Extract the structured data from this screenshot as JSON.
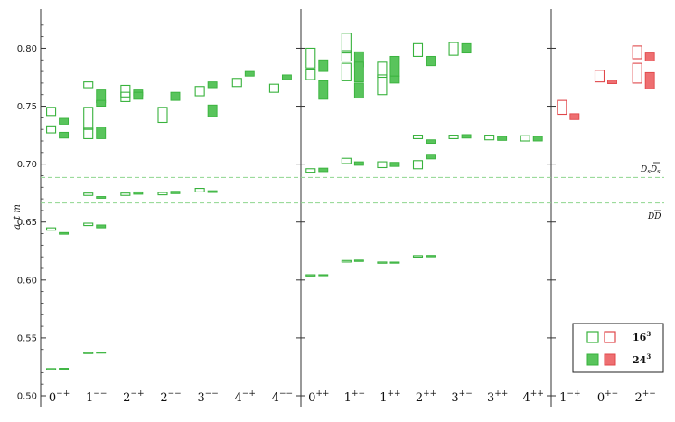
{
  "chart_data": {
    "type": "box",
    "ylabel": "a_t m",
    "ylim": [
      0.5,
      0.83
    ],
    "yticks": [
      "0.50",
      "0.55",
      "0.60",
      "0.65",
      "0.70",
      "0.75",
      "0.80"
    ],
    "colors": {
      "green_stroke": "#38b23c",
      "green_fill": "#59c45c",
      "red_stroke": "#e0474a",
      "red_fill": "#ee6f71",
      "threshold": "#8fd68f"
    },
    "thresholds": [
      {
        "name": "D_s D̄_s",
        "value": 0.6885
      },
      {
        "name": "DD̄",
        "value": 0.6665
      }
    ],
    "threshold_labels": {
      "dsds_base": "D",
      "dsds_sub": "s",
      "dsds_bar": "D",
      "dsds_bar_sub": "s",
      "dd_base": "D",
      "dd_bar": "D"
    },
    "legend": {
      "rows": [
        {
          "size": "16",
          "exp": "3",
          "style": "open"
        },
        {
          "size": "24",
          "exp": "3",
          "style": "filled"
        }
      ]
    },
    "panels": [
      {
        "color": "green",
        "categories": [
          {
            "label": "0",
            "sup": "−+",
            "open": [
              [
                0.742,
                0.749
              ],
              [
                0.727,
                0.733
              ],
              [
                0.643,
                0.645
              ],
              [
                0.5225,
                0.5235
              ]
            ],
            "filled": [
              [
                0.7345,
                0.7395
              ],
              [
                0.7225,
                0.7275
              ],
              [
                0.6395,
                0.641
              ],
              [
                0.5228,
                0.5238
              ]
            ]
          },
          {
            "label": "1",
            "sup": "−−",
            "open": [
              [
                0.766,
                0.771
              ],
              [
                0.73,
                0.749
              ],
              [
                0.722,
                0.731
              ],
              [
                0.673,
                0.675
              ],
              [
                0.647,
                0.649
              ],
              [
                0.5365,
                0.5375
              ]
            ],
            "filled": [
              [
                0.753,
                0.764
              ],
              [
                0.75,
                0.755
              ],
              [
                0.722,
                0.732
              ],
              [
                0.6705,
                0.672
              ],
              [
                0.645,
                0.6475
              ],
              [
                0.5368,
                0.5378
              ]
            ]
          },
          {
            "label": "2",
            "sup": "−+",
            "open": [
              [
                0.758,
                0.768
              ],
              [
                0.754,
                0.762
              ],
              [
                0.673,
                0.675
              ]
            ],
            "filled": [
              [
                0.759,
                0.764
              ],
              [
                0.756,
                0.762
              ],
              [
                0.674,
                0.676
              ]
            ]
          },
          {
            "label": "2",
            "sup": "−−",
            "open": [
              [
                0.736,
                0.749
              ],
              [
                0.6735,
                0.6755
              ]
            ],
            "filled": [
              [
                0.755,
                0.762
              ],
              [
                0.6745,
                0.6765
              ]
            ]
          },
          {
            "label": "3",
            "sup": "−−",
            "open": [
              [
                0.759,
                0.767
              ],
              [
                0.676,
                0.679
              ]
            ],
            "filled": [
              [
                0.766,
                0.771
              ],
              [
                0.741,
                0.751
              ],
              [
                0.6755,
                0.677
              ]
            ]
          },
          {
            "label": "4",
            "sup": "−+",
            "open": [
              [
                0.767,
                0.774
              ]
            ],
            "filled": [
              [
                0.776,
                0.78
              ]
            ]
          },
          {
            "label": "4",
            "sup": "−−",
            "open": [
              [
                0.762,
                0.769
              ]
            ],
            "filled": [
              [
                0.773,
                0.777
              ]
            ]
          }
        ]
      },
      {
        "color": "green",
        "categories": [
          {
            "label": "0",
            "sup": "++",
            "open": [
              [
                0.783,
                0.8
              ],
              [
                0.773,
                0.782
              ],
              [
                0.693,
                0.696
              ],
              [
                0.6035,
                0.6045
              ]
            ],
            "filled": [
              [
                0.78,
                0.79
              ],
              [
                0.756,
                0.772
              ],
              [
                0.6935,
                0.6965
              ],
              [
                0.6038,
                0.6046
              ]
            ]
          },
          {
            "label": "1",
            "sup": "+−",
            "open": [
              [
                0.796,
                0.813
              ],
              [
                0.789,
                0.798
              ],
              [
                0.772,
                0.787
              ],
              [
                0.7005,
                0.705
              ],
              [
                0.6155,
                0.6168
              ]
            ],
            "filled": [
              [
                0.784,
                0.797
              ],
              [
                0.771,
                0.788
              ],
              [
                0.757,
                0.77
              ],
              [
                0.699,
                0.702
              ],
              [
                0.616,
                0.6172
              ]
            ]
          },
          {
            "label": "1",
            "sup": "++",
            "open": [
              [
                0.775,
                0.788
              ],
              [
                0.76,
                0.777
              ],
              [
                0.697,
                0.702
              ],
              [
                0.6145,
                0.6155
              ]
            ],
            "filled": [
              [
                0.776,
                0.793
              ],
              [
                0.77,
                0.776
              ],
              [
                0.698,
                0.7015
              ],
              [
                0.6145,
                0.6155
              ]
            ]
          },
          {
            "label": "2",
            "sup": "++",
            "open": [
              [
                0.793,
                0.804
              ],
              [
                0.722,
                0.725
              ],
              [
                0.696,
                0.703
              ],
              [
                0.6198,
                0.621
              ]
            ],
            "filled": [
              [
                0.785,
                0.793
              ],
              [
                0.718,
                0.721
              ],
              [
                0.7045,
                0.7085
              ],
              [
                0.62,
                0.6212
              ]
            ]
          },
          {
            "label": "3",
            "sup": "+−",
            "open": [
              [
                0.794,
                0.805
              ],
              [
                0.722,
                0.725
              ]
            ],
            "filled": [
              [
                0.796,
                0.804
              ],
              [
                0.7225,
                0.7255
              ]
            ]
          },
          {
            "label": "3",
            "sup": "++",
            "open": [
              [
                0.721,
                0.725
              ]
            ],
            "filled": [
              [
                0.7205,
                0.724
              ]
            ]
          },
          {
            "label": "4",
            "sup": "++",
            "open": [
              [
                0.72,
                0.7245
              ]
            ],
            "filled": [
              [
                0.72,
                0.724
              ]
            ]
          }
        ]
      },
      {
        "color": "red",
        "categories": [
          {
            "label": "1",
            "sup": "−+",
            "open": [
              [
                0.743,
                0.755
              ]
            ],
            "filled": [
              [
                0.7385,
                0.7435
              ]
            ]
          },
          {
            "label": "0",
            "sup": "+−",
            "open": [
              [
                0.771,
                0.781
              ]
            ],
            "filled": [
              [
                0.7695,
                0.7725
              ]
            ]
          },
          {
            "label": "2",
            "sup": "+−",
            "open": [
              [
                0.791,
                0.802
              ],
              [
                0.77,
                0.787
              ]
            ],
            "filled": [
              [
                0.789,
                0.796
              ],
              [
                0.765,
                0.779
              ]
            ]
          }
        ]
      }
    ]
  }
}
